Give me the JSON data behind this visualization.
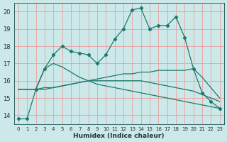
{
  "title": "",
  "xlabel": "Humidex (Indice chaleur)",
  "bg_color": "#cce8e8",
  "grid_color": "#e8a0a0",
  "line_color": "#1a7a6e",
  "xmin": -0.5,
  "xmax": 23.5,
  "ymin": 13.5,
  "ymax": 20.5,
  "yticks": [
    14,
    15,
    16,
    17,
    18,
    19,
    20
  ],
  "xticks": [
    0,
    1,
    2,
    3,
    4,
    5,
    6,
    7,
    8,
    9,
    10,
    11,
    12,
    13,
    14,
    15,
    16,
    17,
    18,
    19,
    20,
    21,
    22,
    23
  ],
  "series1_x": [
    0,
    1,
    2,
    3,
    4,
    5,
    6,
    7,
    8,
    9,
    10,
    11,
    12,
    13,
    14,
    15,
    16,
    17,
    18,
    19,
    20,
    21,
    22,
    23
  ],
  "series1_y": [
    13.8,
    13.8,
    15.5,
    16.7,
    17.5,
    18.0,
    17.7,
    17.6,
    17.5,
    17.0,
    17.5,
    18.4,
    19.0,
    20.1,
    20.2,
    19.0,
    19.2,
    19.2,
    19.7,
    18.5,
    16.7,
    15.3,
    14.8,
    14.4
  ],
  "series2_x": [
    0,
    1,
    2,
    3,
    4,
    5,
    6,
    7,
    8,
    9,
    10,
    11,
    12,
    13,
    14,
    15,
    16,
    17,
    18,
    19,
    20,
    21,
    22,
    23
  ],
  "series2_y": [
    15.5,
    15.5,
    15.5,
    15.6,
    15.6,
    15.7,
    15.8,
    15.9,
    16.0,
    16.1,
    16.2,
    16.3,
    16.4,
    16.4,
    16.5,
    16.5,
    16.6,
    16.6,
    16.6,
    16.6,
    16.7,
    16.2,
    15.6,
    15.0
  ],
  "series3_x": [
    0,
    1,
    2,
    3,
    4,
    5,
    6,
    7,
    8,
    9,
    10,
    11,
    12,
    13,
    14,
    15,
    16,
    17,
    18,
    19,
    20,
    21,
    22,
    23
  ],
  "series3_y": [
    15.5,
    15.5,
    15.5,
    15.5,
    15.6,
    15.7,
    15.8,
    15.9,
    16.0,
    16.0,
    16.0,
    16.0,
    16.0,
    16.0,
    16.0,
    15.9,
    15.8,
    15.7,
    15.6,
    15.5,
    15.4,
    15.2,
    15.0,
    14.8
  ],
  "series4_x": [
    2,
    3,
    4,
    5,
    6,
    7,
    8,
    9,
    10,
    11,
    12,
    13,
    14,
    15,
    16,
    17,
    18,
    19,
    20,
    21,
    22,
    23
  ],
  "series4_y": [
    15.5,
    16.7,
    17.0,
    16.8,
    16.5,
    16.2,
    16.0,
    15.8,
    15.7,
    15.6,
    15.5,
    15.4,
    15.3,
    15.2,
    15.1,
    15.0,
    14.9,
    14.8,
    14.7,
    14.6,
    14.5,
    14.4
  ]
}
